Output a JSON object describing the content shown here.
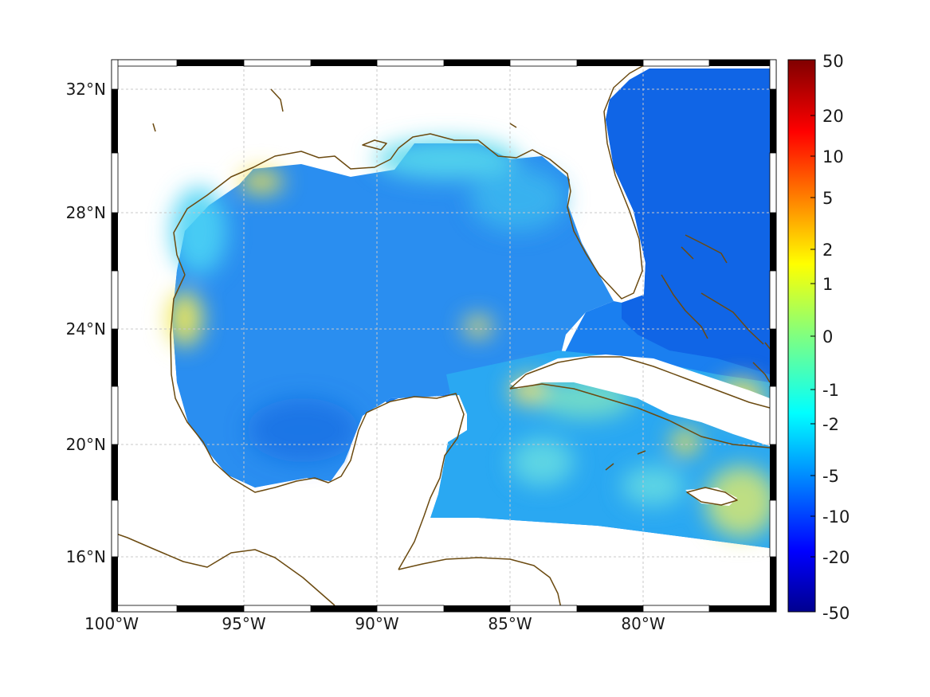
{
  "map": {
    "lon_ticks": [
      "100°W",
      "95°W",
      "90°W",
      "85°W",
      "80°W"
    ],
    "lat_ticks": [
      "32°N",
      "28°N",
      "24°N",
      "20°N",
      "16°N"
    ],
    "lon_range": [
      -100,
      -75
    ],
    "lat_range": [
      14.2,
      33
    ],
    "grid": true,
    "coastline_color": "#6b4a10",
    "frame_colors": [
      "#000000",
      "#ffffff"
    ]
  },
  "colorbar": {
    "labels": [
      "50",
      "20",
      "10",
      "5",
      "2",
      "1",
      "0",
      "-1",
      "-2",
      "-5",
      "-10",
      "-20",
      "-50"
    ],
    "colormap": "jet"
  }
}
